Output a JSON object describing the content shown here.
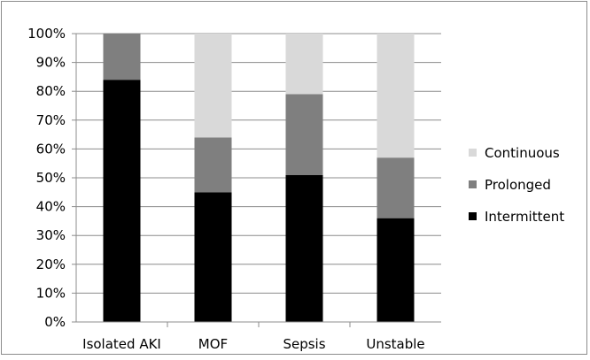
{
  "chart_data": {
    "type": "bar",
    "stacked": "percent",
    "categories": [
      "Isolated AKI",
      "MOF",
      "Sepsis",
      "Unstable"
    ],
    "series": [
      {
        "name": "Intermittent",
        "color": "#000000",
        "values": [
          84,
          45,
          51,
          36
        ]
      },
      {
        "name": "Prolonged",
        "color": "#7f7f7f",
        "values": [
          16,
          19,
          28,
          21
        ]
      },
      {
        "name": "Continuous",
        "color": "#d9d9d9",
        "values": [
          0,
          36,
          21,
          43
        ]
      }
    ],
    "y_ticks": [
      "0%",
      "10%",
      "20%",
      "30%",
      "40%",
      "50%",
      "60%",
      "70%",
      "80%",
      "90%",
      "100%"
    ],
    "ylim": [
      0,
      100
    ],
    "grid": true,
    "legend_position": "right",
    "legend_order": [
      "Continuous",
      "Prolonged",
      "Intermittent"
    ]
  }
}
